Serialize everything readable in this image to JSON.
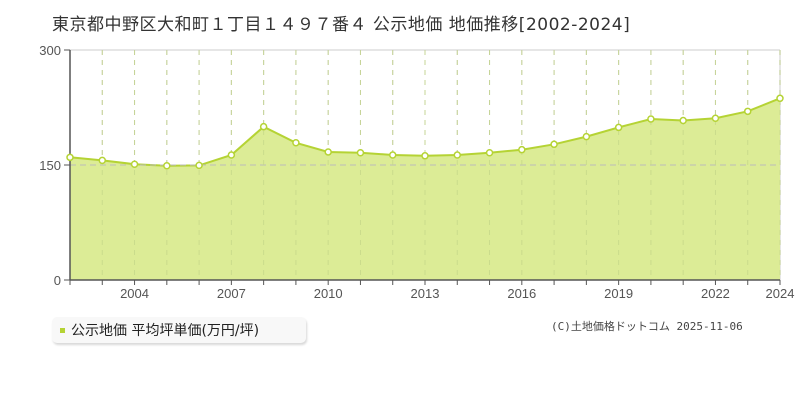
{
  "header": {
    "title": "東京都中野区大和町１丁目１４９７番４ 公示地価 地価推移[2002-2024]"
  },
  "legend": {
    "label": "公示地価 平均坪単価(万円/坪)",
    "color": "#b5d334"
  },
  "footer": {
    "copyright": "(C)土地価格ドットコム 2025-11-06"
  },
  "colors": {
    "area_fill": "#dcec96",
    "line": "#b5d334",
    "marker_fill": "#ffffff",
    "grid": "#c8c8c8",
    "axis": "#555555"
  },
  "chart_data": {
    "type": "area",
    "title": "東京都中野区大和町１丁目１４９７番４ 公示地価 地価推移[2002-2024]",
    "xlabel": "",
    "ylabel": "",
    "ylim": [
      0,
      300
    ],
    "yticks": [
      0,
      150,
      300
    ],
    "xticks": [
      2004,
      2007,
      2010,
      2013,
      2016,
      2019,
      2022,
      2024
    ],
    "grid": true,
    "legend_position": "bottom-left",
    "x": [
      2002,
      2003,
      2004,
      2005,
      2006,
      2007,
      2008,
      2009,
      2010,
      2011,
      2012,
      2013,
      2014,
      2015,
      2016,
      2017,
      2018,
      2019,
      2020,
      2021,
      2022,
      2023,
      2024
    ],
    "series": [
      {
        "name": "公示地価 平均坪単価(万円/坪)",
        "values": [
          160,
          156,
          151,
          149,
          149.5,
          163,
          200,
          179,
          167,
          166,
          163,
          162,
          163,
          166,
          170,
          177,
          187,
          199,
          210,
          208,
          211,
          220,
          237
        ]
      }
    ]
  }
}
